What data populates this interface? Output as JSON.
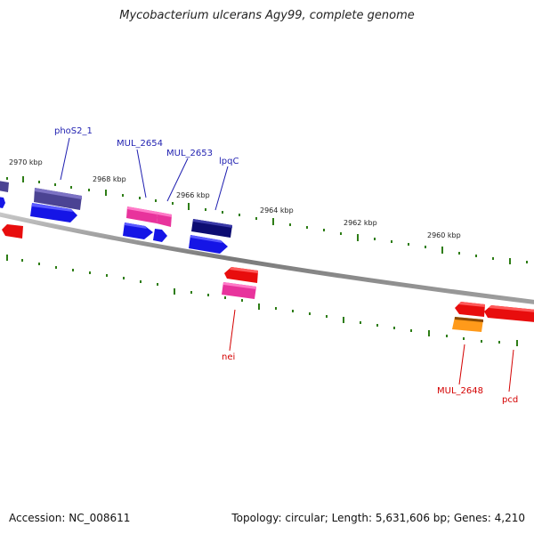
{
  "title": "Mycobacterium ulcerans Agy99, complete genome",
  "footer": {
    "accession": "Accession: NC_008611",
    "summary": "Topology: circular; Length: 5,631,606 bp; Genes: 4,210"
  },
  "colors": {
    "backbone": "#8a8a8a",
    "tick": "#2e7d16",
    "label_top": "#1f1fb0",
    "label_bottom": "#d40000",
    "blue": "#1515e6",
    "navy": "#0d0d72",
    "purple": "#4b4393",
    "pink": "#e8339c",
    "red": "#e80d0d",
    "orange": "#ff9a1a"
  },
  "kbp_labels": [
    "2970 kbp",
    "2968 kbp",
    "2966 kbp",
    "2964 kbp",
    "2962 kbp",
    "2960 kbp"
  ],
  "gene_labels_top": [
    "phoS2_1",
    "MUL_2654",
    "MUL_2653",
    "lpqC"
  ],
  "gene_labels_bottom": [
    "nei",
    "MUL_2648",
    "pcd"
  ]
}
